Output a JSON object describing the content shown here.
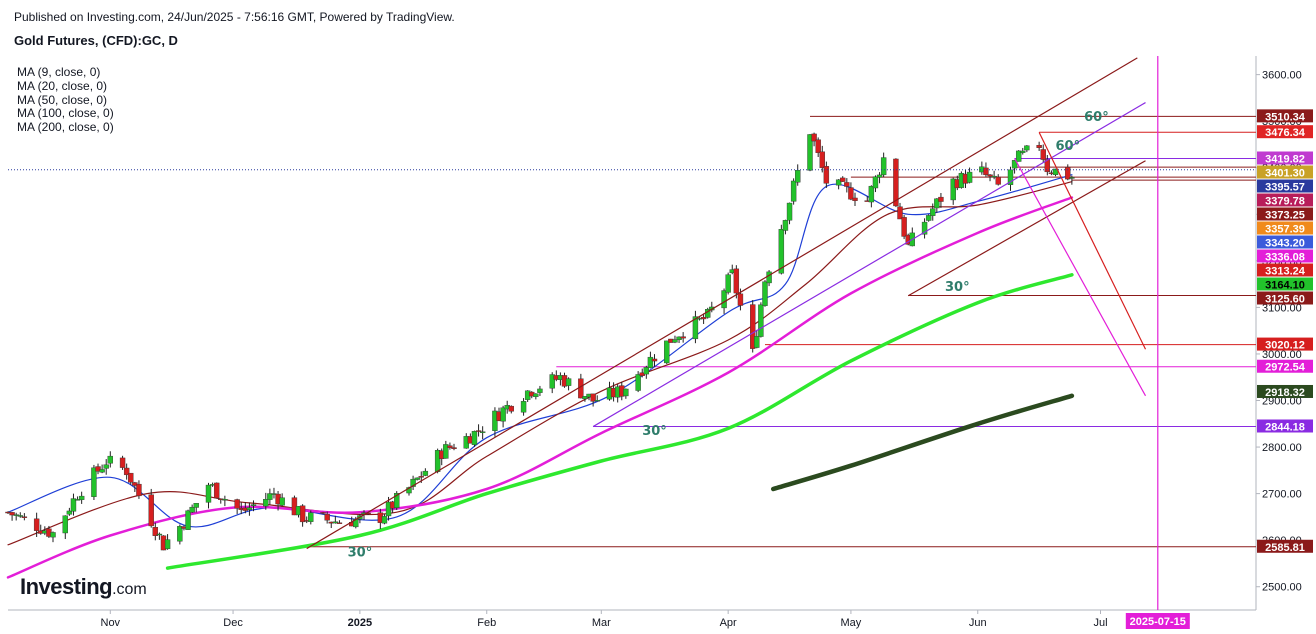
{
  "header": {
    "published": "Published on Investing.com, 24/Jun/2025 - 7:56:16 GMT, Powered by TradingView.",
    "title": "Gold Futures, (CFD):GC, D"
  },
  "legend": [
    "MA (9, close, 0)",
    "MA (20, close, 0)",
    "MA (50, close, 0)",
    "MA (100, close, 0)",
    "MA (200, close, 0)"
  ],
  "logo": {
    "brand": "Investing",
    "domain": ".com"
  },
  "colors": {
    "up": "#22c22b",
    "down": "#d61f1f",
    "ma9": "#1f3fd6",
    "ma20": "#8b1a1a",
    "ma50": "#e31ed8",
    "ma100": "#2ee82e",
    "ma200": "#2b4a1f",
    "support": "#8b1a1a",
    "resistance": "#d61f1f",
    "purple": "#8a2be2",
    "magenta": "#e31ed8"
  },
  "chart_data": {
    "type": "candlestick",
    "symbol": "GC",
    "timeframe": "D",
    "ylim": [
      2450,
      3640
    ],
    "y_ticks": [
      2500,
      2600,
      2700,
      2800,
      2900,
      3000,
      3100,
      3200,
      3300,
      3400,
      3500,
      3600
    ],
    "y_tick_labels": [
      "2500.00",
      "2600.00",
      "2700.00",
      "2800.00",
      "2900.00",
      "3000.00",
      "3100.00",
      "3200.00",
      "3300.00",
      "3400.00",
      "3500.00",
      "3600.00"
    ],
    "x_labels": [
      {
        "label": "Nov",
        "date": "2024-11-01"
      },
      {
        "label": "Dec",
        "date": "2024-12-01"
      },
      {
        "label": "2025",
        "date": "2025-01-01"
      },
      {
        "label": "Feb",
        "date": "2025-02-01"
      },
      {
        "label": "Mar",
        "date": "2025-03-01"
      },
      {
        "label": "Apr",
        "date": "2025-04-01"
      },
      {
        "label": "May",
        "date": "2025-05-01"
      },
      {
        "label": "Jun",
        "date": "2025-06-01"
      },
      {
        "label": "Jul",
        "date": "2025-07-01"
      }
    ],
    "x_range": [
      "2024-10-07",
      "2025-08-08"
    ],
    "vertical_marker": {
      "label": "2025-07-15",
      "date": "2025-07-15"
    },
    "last_price": 3395.57,
    "close_path": [
      [
        "2024-10-07",
        2660
      ],
      [
        "2024-10-18",
        2615
      ],
      [
        "2024-10-24",
        2700
      ],
      [
        "2024-10-31",
        2770
      ],
      [
        "2024-11-05",
        2750
      ],
      [
        "2024-11-14",
        2590
      ],
      [
        "2024-11-19",
        2640
      ],
      [
        "2024-11-25",
        2720
      ],
      [
        "2024-12-03",
        2660
      ],
      [
        "2024-12-11",
        2700
      ],
      [
        "2024-12-18",
        2650
      ],
      [
        "2024-12-27",
        2640
      ],
      [
        "2025-01-06",
        2650
      ],
      [
        "2025-01-14",
        2720
      ],
      [
        "2025-01-21",
        2790
      ],
      [
        "2025-01-29",
        2830
      ],
      [
        "2025-02-05",
        2880
      ],
      [
        "2025-02-11",
        2920
      ],
      [
        "2025-02-19",
        2950
      ],
      [
        "2025-02-27",
        2900
      ],
      [
        "2025-03-06",
        2920
      ],
      [
        "2025-03-12",
        2980
      ],
      [
        "2025-03-19",
        3040
      ],
      [
        "2025-03-27",
        3080
      ],
      [
        "2025-04-02",
        3170
      ],
      [
        "2025-04-07",
        3000
      ],
      [
        "2025-04-10",
        3160
      ],
      [
        "2025-04-16",
        3330
      ],
      [
        "2025-04-21",
        3480
      ],
      [
        "2025-04-25",
        3370
      ],
      [
        "2025-05-05",
        3330
      ],
      [
        "2025-05-09",
        3420
      ],
      [
        "2025-05-15",
        3230
      ],
      [
        "2025-05-20",
        3300
      ],
      [
        "2025-05-26",
        3370
      ],
      [
        "2025-06-02",
        3390
      ],
      [
        "2025-06-06",
        3360
      ],
      [
        "2025-06-11",
        3420
      ],
      [
        "2025-06-16",
        3450
      ],
      [
        "2025-06-18",
        3400
      ],
      [
        "2025-06-24",
        3380
      ]
    ],
    "moving_averages": [
      {
        "name": "MA (9, close, 0)",
        "color_key": "ma9",
        "points": [
          [
            "2024-10-07",
            2660
          ],
          [
            "2024-11-01",
            2735
          ],
          [
            "2024-11-20",
            2630
          ],
          [
            "2024-12-10",
            2670
          ],
          [
            "2025-01-10",
            2650
          ],
          [
            "2025-02-01",
            2820
          ],
          [
            "2025-03-03",
            2910
          ],
          [
            "2025-04-01",
            3090
          ],
          [
            "2025-04-15",
            3150
          ],
          [
            "2025-04-25",
            3360
          ],
          [
            "2025-05-15",
            3300
          ],
          [
            "2025-06-02",
            3330
          ],
          [
            "2025-06-24",
            3385
          ]
        ]
      },
      {
        "name": "MA (20, close, 0)",
        "color_key": "ma20",
        "points": [
          [
            "2024-10-07",
            2590
          ],
          [
            "2024-11-10",
            2700
          ],
          [
            "2024-12-05",
            2680
          ],
          [
            "2025-01-10",
            2660
          ],
          [
            "2025-02-01",
            2780
          ],
          [
            "2025-03-01",
            2920
          ],
          [
            "2025-04-01",
            3030
          ],
          [
            "2025-04-20",
            3150
          ],
          [
            "2025-05-10",
            3300
          ],
          [
            "2025-06-01",
            3320
          ],
          [
            "2025-06-24",
            3370
          ]
        ]
      },
      {
        "name": "MA (50, close, 0)",
        "color_key": "ma50",
        "points": [
          [
            "2024-10-07",
            2520
          ],
          [
            "2024-11-01",
            2610
          ],
          [
            "2024-12-01",
            2670
          ],
          [
            "2025-01-01",
            2660
          ],
          [
            "2025-02-01",
            2710
          ],
          [
            "2025-03-01",
            2830
          ],
          [
            "2025-04-01",
            2960
          ],
          [
            "2025-05-01",
            3130
          ],
          [
            "2025-06-01",
            3260
          ],
          [
            "2025-06-24",
            3336
          ]
        ]
      },
      {
        "name": "MA (100, close, 0)",
        "color_key": "ma100",
        "points": [
          [
            "2024-11-15",
            2540
          ],
          [
            "2025-01-01",
            2610
          ],
          [
            "2025-02-01",
            2700
          ],
          [
            "2025-03-01",
            2770
          ],
          [
            "2025-04-01",
            2840
          ],
          [
            "2025-05-01",
            2985
          ],
          [
            "2025-06-01",
            3110
          ],
          [
            "2025-06-24",
            3170
          ]
        ]
      },
      {
        "name": "MA (200, close, 0)",
        "color_key": "ma200",
        "points": [
          [
            "2025-04-12",
            2710
          ],
          [
            "2025-05-01",
            2760
          ],
          [
            "2025-06-01",
            2850
          ],
          [
            "2025-06-24",
            2910
          ]
        ]
      }
    ],
    "horizontal_levels": [
      {
        "value": 3510.34,
        "color_key": "support",
        "from": "2025-04-21"
      },
      {
        "value": 3476.34,
        "color_key": "resistance",
        "from": "2025-06-16"
      },
      {
        "value": 3419.82,
        "color_key": "purple",
        "from": "2025-06-10"
      },
      {
        "value": 3401.3,
        "color_key": "support",
        "from": "2025-06-10"
      },
      {
        "value": 3379.78,
        "color_key": "support",
        "from": "2025-05-01"
      },
      {
        "value": 3373.25,
        "color_key": "support",
        "from": "2025-06-24"
      },
      {
        "value": 3125.6,
        "color_key": "support",
        "from": "2025-05-15"
      },
      {
        "value": 3020.12,
        "color_key": "resistance",
        "from": "2025-04-10"
      },
      {
        "value": 2972.54,
        "color_key": "magenta",
        "from": "2025-02-18"
      },
      {
        "value": 2844.18,
        "color_key": "purple",
        "from": "2025-02-27"
      },
      {
        "value": 2585.81,
        "color_key": "support",
        "from": "2024-12-19"
      }
    ],
    "price_labels": [
      {
        "value": 3510.34,
        "label": "3510.34",
        "bg": "#8b1a1a",
        "fg": "#ffffff"
      },
      {
        "value": 3476.34,
        "label": "3476.34",
        "bg": "#e02424",
        "fg": "#ffffff"
      },
      {
        "value": 3419.82,
        "label": "3419.82",
        "bg": "#c03ad0",
        "fg": "#ffffff"
      },
      {
        "value": 3401.3,
        "label": "3401.30",
        "bg": "#c9a227",
        "fg": "#ffffff"
      },
      {
        "value": 3395.57,
        "label": "3395.57",
        "bg": "#2a3a9e",
        "fg": "#ffffff"
      },
      {
        "value": 3379.78,
        "label": "3379.78",
        "bg": "#b81d5a",
        "fg": "#ffffff"
      },
      {
        "value": 3373.25,
        "label": "3373.25",
        "bg": "#8b1a1a",
        "fg": "#ffffff"
      },
      {
        "value": 3357.39,
        "label": "3357.39",
        "bg": "#f08a1c",
        "fg": "#ffffff"
      },
      {
        "value": 3343.2,
        "label": "3343.20",
        "bg": "#3b5bdb",
        "fg": "#ffffff"
      },
      {
        "value": 3336.08,
        "label": "3336.08",
        "bg": "#e31ed8",
        "fg": "#ffffff"
      },
      {
        "value": 3313.24,
        "label": "3313.24",
        "bg": "#d61f1f",
        "fg": "#ffffff"
      },
      {
        "value": 3164.1,
        "label": "3164.10",
        "bg": "#22c22b",
        "fg": "#000000"
      },
      {
        "value": 3125.6,
        "label": "3125.60",
        "bg": "#8b1a1a",
        "fg": "#ffffff"
      },
      {
        "value": 3020.12,
        "label": "3020.12",
        "bg": "#d61f1f",
        "fg": "#ffffff"
      },
      {
        "value": 2972.54,
        "label": "2972.54",
        "bg": "#e31ed8",
        "fg": "#ffffff"
      },
      {
        "value": 2918.32,
        "label": "2918.32",
        "bg": "#2b4a1f",
        "fg": "#ffffff"
      },
      {
        "value": 2844.18,
        "label": "2844.18",
        "bg": "#8a2be2",
        "fg": "#ffffff"
      },
      {
        "value": 2585.81,
        "label": "2585.81",
        "bg": "#8b1a1a",
        "fg": "#ffffff"
      }
    ],
    "trend_lines": [
      {
        "color_key": "support",
        "from": [
          "2024-12-19",
          2582
        ],
        "to": [
          "2025-07-10",
          3636
        ]
      },
      {
        "color_key": "purple",
        "from": [
          "2025-02-27",
          2844
        ],
        "to": [
          "2025-07-12",
          3540
        ]
      },
      {
        "color_key": "support",
        "from": [
          "2025-05-15",
          3125
        ],
        "to": [
          "2025-07-12",
          3415
        ]
      },
      {
        "color_key": "resistance",
        "from": [
          "2025-06-16",
          3476
        ],
        "to": [
          "2025-07-12",
          3010
        ]
      },
      {
        "color_key": "magenta",
        "from": [
          "2025-06-10",
          3420
        ],
        "to": [
          "2025-07-12",
          2910
        ]
      }
    ],
    "angle_annotations": [
      {
        "label": "30°",
        "date": "2024-12-29",
        "value": 2565
      },
      {
        "label": "30°",
        "date": "2025-03-11",
        "value": 2826
      },
      {
        "label": "30°",
        "date": "2025-05-24",
        "value": 3135
      },
      {
        "label": "60°",
        "date": "2025-06-20",
        "value": 3438
      },
      {
        "label": "60°",
        "date": "2025-06-27",
        "value": 3500
      }
    ]
  }
}
